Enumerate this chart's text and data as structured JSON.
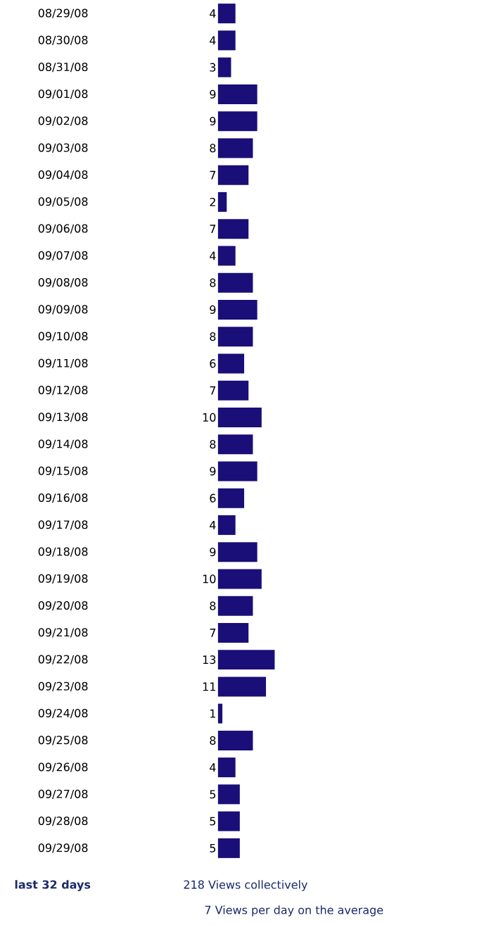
{
  "chart_data": {
    "type": "bar",
    "orientation": "horizontal",
    "data_labels": true,
    "color": "#1a0e78",
    "categories": [
      "08/29/08",
      "08/30/08",
      "08/31/08",
      "09/01/08",
      "09/02/08",
      "09/03/08",
      "09/04/08",
      "09/05/08",
      "09/06/08",
      "09/07/08",
      "09/08/08",
      "09/09/08",
      "09/10/08",
      "09/11/08",
      "09/12/08",
      "09/13/08",
      "09/14/08",
      "09/15/08",
      "09/16/08",
      "09/17/08",
      "09/18/08",
      "09/19/08",
      "09/20/08",
      "09/21/08",
      "09/22/08",
      "09/23/08",
      "09/24/08",
      "09/25/08",
      "09/26/08",
      "09/27/08",
      "09/28/08",
      "09/29/08"
    ],
    "values": [
      4,
      4,
      3,
      9,
      9,
      8,
      7,
      2,
      7,
      4,
      8,
      9,
      8,
      6,
      7,
      10,
      8,
      9,
      6,
      4,
      9,
      10,
      8,
      7,
      13,
      11,
      1,
      8,
      4,
      5,
      5,
      5
    ],
    "annotations": [
      "last 32 days",
      "218 Views collectively",
      "7 Views per day on the average"
    ]
  }
}
